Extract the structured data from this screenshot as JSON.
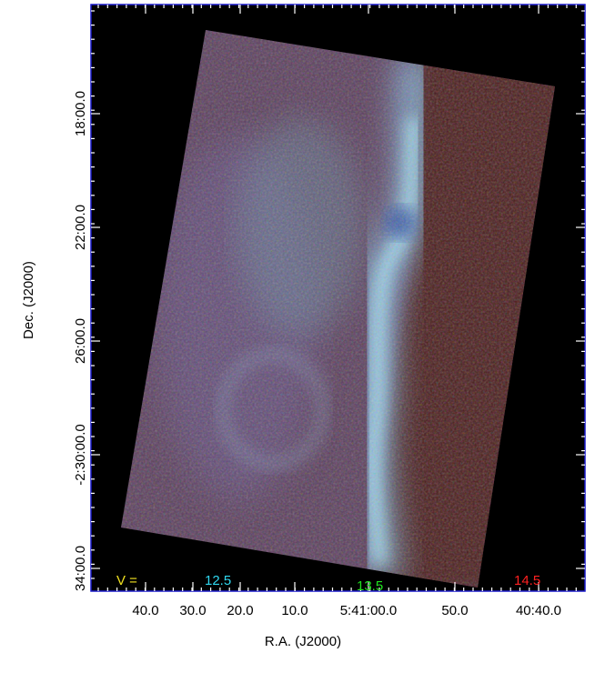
{
  "axes": {
    "x_label": "R.A. (J2000)",
    "y_label": "Dec. (J2000)",
    "x_ticks": [
      "40.0",
      "30.0",
      "20.0",
      "10.0",
      "5:41:00.0",
      "50.0",
      "40:40.0"
    ],
    "y_ticks": [
      "18:00.0",
      "22:00.0",
      "26:00.0",
      "-2:30:00.0",
      "34:00.0"
    ]
  },
  "legend": {
    "label": "V =",
    "entries": [
      "12.5",
      "13.5",
      "14.5"
    ]
  }
}
